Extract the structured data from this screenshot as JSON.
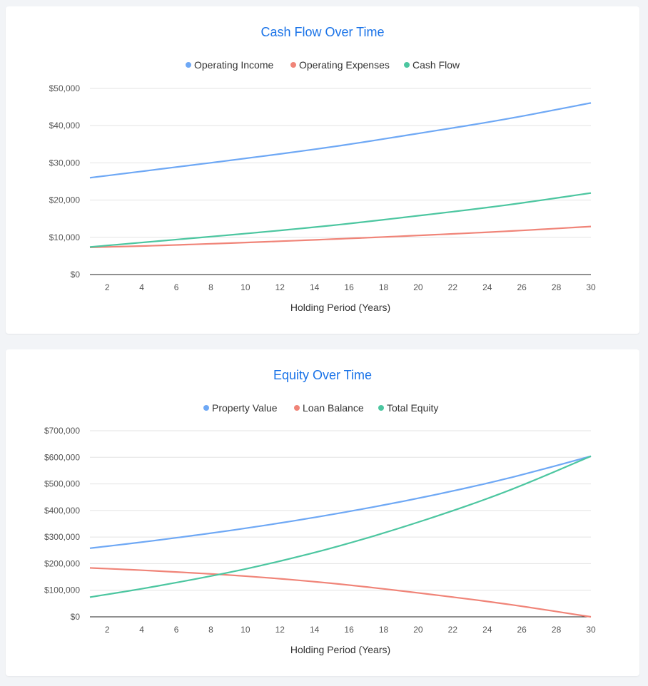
{
  "colors": {
    "title": "#1a73e8",
    "blue": "#6ea8f5",
    "red": "#f08478",
    "green": "#4cc6a0",
    "grid": "#e3e3e3",
    "axis": "#222222"
  },
  "chart_data": [
    {
      "type": "line",
      "title": "Cash Flow Over Time",
      "xlabel": "Holding Period (Years)",
      "ylabel": "",
      "xlim": [
        1,
        30
      ],
      "ylim": [
        0,
        50000
      ],
      "x_ticks": [
        2,
        4,
        6,
        8,
        10,
        12,
        14,
        16,
        18,
        20,
        22,
        24,
        26,
        28,
        30
      ],
      "y_ticks": [
        0,
        10000,
        20000,
        30000,
        40000,
        50000
      ],
      "y_tick_labels": [
        "$0",
        "$10,000",
        "$20,000",
        "$30,000",
        "$40,000",
        "$50,000"
      ],
      "legend_position": "top",
      "grid": true,
      "series": [
        {
          "name": "Operating Income",
          "color": "#6ea8f5",
          "points": [
            [
              1,
              26000
            ],
            [
              5,
              28300
            ],
            [
              10,
              31200
            ],
            [
              15,
              34300
            ],
            [
              20,
              37900
            ],
            [
              25,
              41700
            ],
            [
              30,
              46100
            ]
          ]
        },
        {
          "name": "Operating Expenses",
          "color": "#f08478",
          "points": [
            [
              1,
              7300
            ],
            [
              5,
              7800
            ],
            [
              10,
              8600
            ],
            [
              15,
              9500
            ],
            [
              20,
              10500
            ],
            [
              25,
              11600
            ],
            [
              30,
              12900
            ]
          ]
        },
        {
          "name": "Cash Flow",
          "color": "#4cc6a0",
          "points": [
            [
              1,
              7400
            ],
            [
              5,
              9000
            ],
            [
              10,
              11000
            ],
            [
              15,
              13200
            ],
            [
              20,
              15800
            ],
            [
              25,
              18600
            ],
            [
              30,
              21900
            ]
          ]
        }
      ]
    },
    {
      "type": "line",
      "title": "Equity Over Time",
      "xlabel": "Holding Period (Years)",
      "ylabel": "",
      "xlim": [
        1,
        30
      ],
      "ylim": [
        0,
        700000
      ],
      "x_ticks": [
        2,
        4,
        6,
        8,
        10,
        12,
        14,
        16,
        18,
        20,
        22,
        24,
        26,
        28,
        30
      ],
      "y_ticks": [
        0,
        100000,
        200000,
        300000,
        400000,
        500000,
        600000,
        700000
      ],
      "y_tick_labels": [
        "$0",
        "$100,000",
        "$200,000",
        "$300,000",
        "$400,000",
        "$500,000",
        "$600,000",
        "$700,000"
      ],
      "legend_position": "top",
      "grid": true,
      "series": [
        {
          "name": "Property Value",
          "color": "#6ea8f5",
          "points": [
            [
              1,
              258000
            ],
            [
              5,
              289000
            ],
            [
              10,
              333000
            ],
            [
              15,
              385000
            ],
            [
              20,
              446000
            ],
            [
              25,
              518000
            ],
            [
              30,
              604000
            ]
          ]
        },
        {
          "name": "Loan Balance",
          "color": "#f08478",
          "points": [
            [
              1,
              184000
            ],
            [
              5,
              172000
            ],
            [
              10,
              153000
            ],
            [
              15,
              126000
            ],
            [
              20,
              90000
            ],
            [
              25,
              49000
            ],
            [
              30,
              0
            ]
          ]
        },
        {
          "name": "Total Equity",
          "color": "#4cc6a0",
          "points": [
            [
              1,
              74000
            ],
            [
              5,
              117000
            ],
            [
              10,
              180000
            ],
            [
              15,
              259000
            ],
            [
              20,
              356000
            ],
            [
              25,
              469000
            ],
            [
              30,
              604000
            ]
          ]
        }
      ]
    }
  ]
}
